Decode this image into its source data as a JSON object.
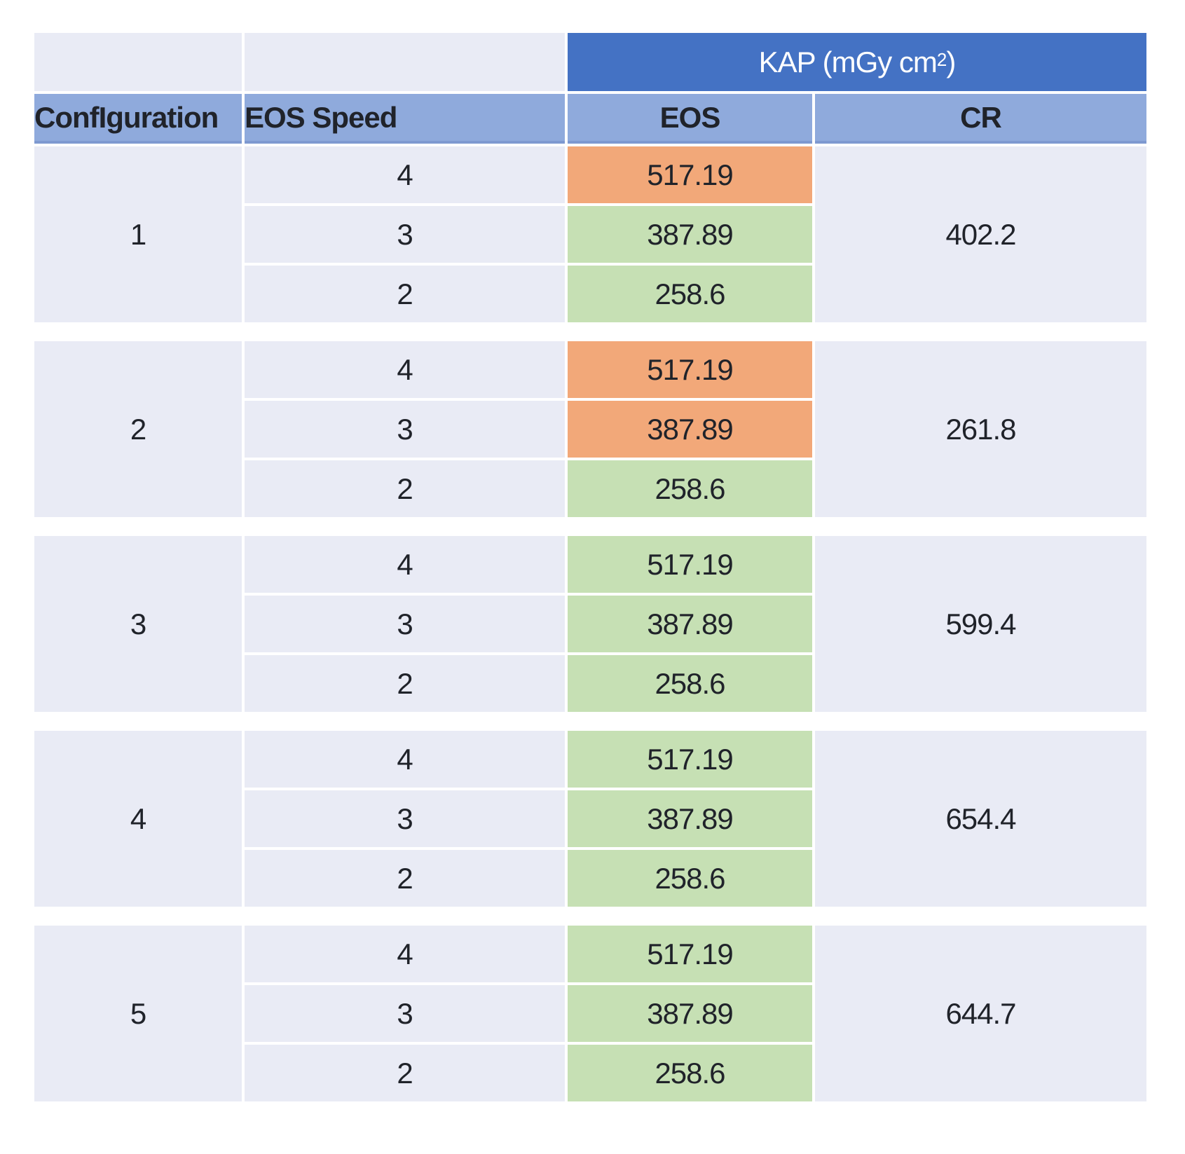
{
  "header": {
    "kap": {
      "prefix": "KAP (mGy cm",
      "sup": "2",
      "suffix": ")"
    },
    "columns": {
      "configuration": "ConfIguration",
      "eos_speed": "EOS Speed",
      "eos": "EOS",
      "cr": "CR"
    }
  },
  "chart_data": {
    "type": "table",
    "column_group_header": "KAP (mGy cm²)",
    "columns": [
      "ConfIguration",
      "EOS Speed",
      "EOS",
      "CR"
    ],
    "groups": [
      {
        "configuration": 1,
        "cr": 402.2,
        "rows": [
          {
            "speed": 4,
            "eos": 517.19,
            "highlight": "orange"
          },
          {
            "speed": 3,
            "eos": 387.89,
            "highlight": "green"
          },
          {
            "speed": 2,
            "eos": 258.6,
            "highlight": "green"
          }
        ]
      },
      {
        "configuration": 2,
        "cr": 261.8,
        "rows": [
          {
            "speed": 4,
            "eos": 517.19,
            "highlight": "orange"
          },
          {
            "speed": 3,
            "eos": 387.89,
            "highlight": "orange"
          },
          {
            "speed": 2,
            "eos": 258.6,
            "highlight": "green"
          }
        ]
      },
      {
        "configuration": 3,
        "cr": 599.4,
        "rows": [
          {
            "speed": 4,
            "eos": 517.19,
            "highlight": "green"
          },
          {
            "speed": 3,
            "eos": 387.89,
            "highlight": "green"
          },
          {
            "speed": 2,
            "eos": 258.6,
            "highlight": "green"
          }
        ]
      },
      {
        "configuration": 4,
        "cr": 654.4,
        "rows": [
          {
            "speed": 4,
            "eos": 517.19,
            "highlight": "green"
          },
          {
            "speed": 3,
            "eos": 387.89,
            "highlight": "green"
          },
          {
            "speed": 2,
            "eos": 258.6,
            "highlight": "green"
          }
        ]
      },
      {
        "configuration": 5,
        "cr": 644.7,
        "rows": [
          {
            "speed": 4,
            "eos": 517.19,
            "highlight": "green"
          },
          {
            "speed": 3,
            "eos": 387.89,
            "highlight": "green"
          },
          {
            "speed": 2,
            "eos": 258.6,
            "highlight": "green"
          }
        ]
      }
    ]
  },
  "colors": {
    "header_dark_blue": "#4472C4",
    "header_light_blue": "#8FAADC",
    "row_lavender": "#E9EBF5",
    "highlight_orange": "#F2A879",
    "highlight_green": "#C6E0B4",
    "grid_line_white": "#FFFFFF"
  }
}
